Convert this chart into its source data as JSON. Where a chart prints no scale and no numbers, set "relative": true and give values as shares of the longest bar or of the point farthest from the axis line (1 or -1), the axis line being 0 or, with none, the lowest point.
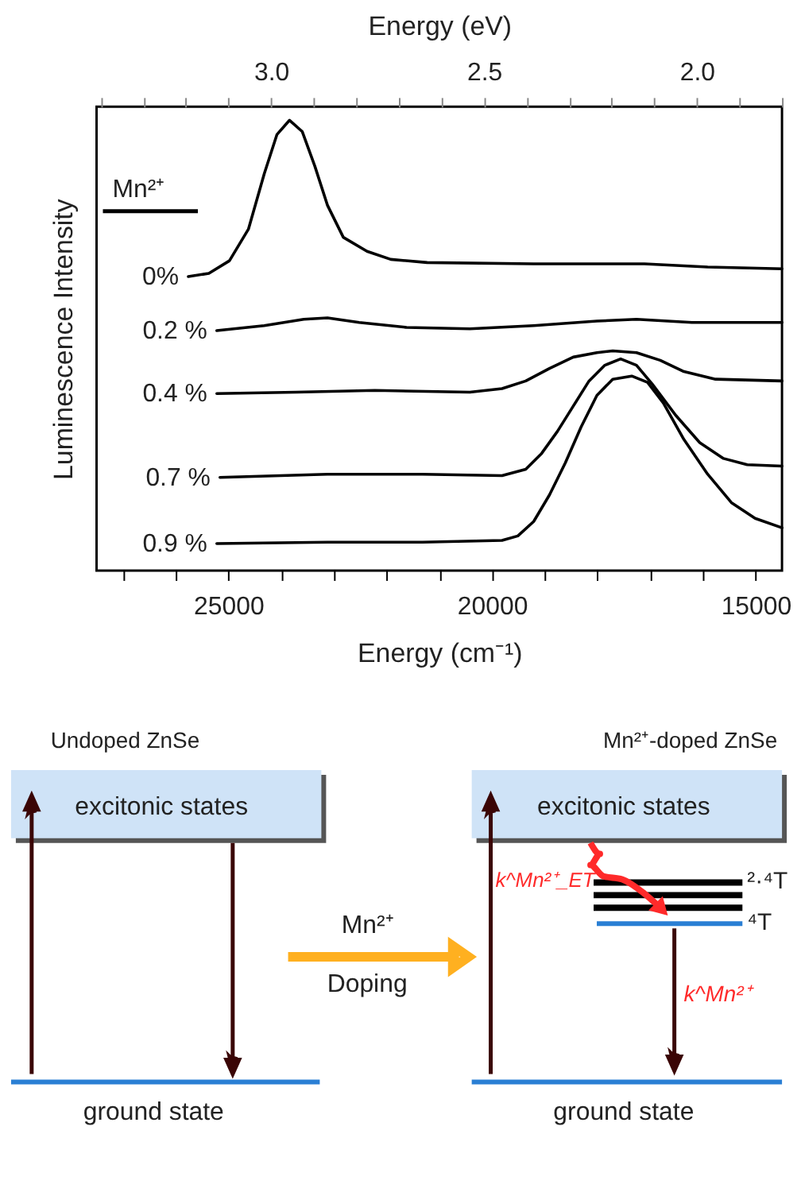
{
  "chart_data": [
    {
      "type": "line",
      "relative": true,
      "xlabel": "Energy (cm⁻¹)",
      "ylabel": "Luminescence Intensity",
      "x2label": "Energy (eV)",
      "legend_title": "Mn²⁺",
      "xlim": [
        27500,
        14500
      ],
      "xticks": [
        {
          "value": 27000,
          "label": null
        },
        {
          "value": 26000,
          "label": null
        },
        25000,
        {
          "value": 24000,
          "label": null
        },
        {
          "value": 23000,
          "label": null
        },
        {
          "value": 22000,
          "label": null
        },
        {
          "value": 21000,
          "label": null
        },
        20000,
        {
          "value": 19000,
          "label": null
        },
        {
          "value": 18000,
          "label": null
        },
        {
          "value": 17000,
          "label": null
        },
        {
          "value": 16000,
          "label": null
        },
        15000
      ],
      "x2lim": [
        3.41,
        1.8
      ],
      "x2ticks": [
        {
          "value": 3.4,
          "label": null
        },
        {
          "value": 3.3,
          "label": null
        },
        {
          "value": 3.2,
          "label": null
        },
        {
          "value": 3.1,
          "label": null
        },
        {
          "value": 3.0,
          "label": "3.0"
        },
        {
          "value": 2.9,
          "label": null
        },
        {
          "value": 2.8,
          "label": null
        },
        {
          "value": 2.7,
          "label": null
        },
        {
          "value": 2.6,
          "label": null
        },
        {
          "value": 2.5,
          "label": "2.5"
        },
        {
          "value": 2.4,
          "label": null
        },
        {
          "value": 2.3,
          "label": null
        },
        {
          "value": 2.2,
          "label": null
        },
        {
          "value": 2.1,
          "label": null
        },
        {
          "value": 2.0,
          "label": "2.0"
        },
        {
          "value": 1.9,
          "label": null
        },
        {
          "value": 1.8,
          "label": null
        }
      ],
      "series": [
        {
          "name": "0%",
          "color": "#000000",
          "x": [
            25760,
            25370,
            24980,
            24620,
            24320,
            24080,
            23840,
            23600,
            23360,
            23120,
            22820,
            22370,
            21920,
            21230,
            19210,
            17110,
            15910,
            14500
          ],
          "values": [
            0.653,
            0.66,
            0.688,
            0.758,
            0.881,
            0.968,
            1.0,
            0.975,
            0.898,
            0.811,
            0.74,
            0.709,
            0.691,
            0.684,
            0.681,
            0.681,
            0.674,
            0.67
          ]
        },
        {
          "name": "0.2 %",
          "color": "#000000",
          "x": [
            25220,
            24320,
            23570,
            23120,
            22520,
            21620,
            20420,
            19210,
            18010,
            17260,
            16210,
            14500
          ],
          "values": [
            0.533,
            0.544,
            0.558,
            0.561,
            0.551,
            0.54,
            0.537,
            0.544,
            0.554,
            0.558,
            0.551,
            0.551
          ]
        },
        {
          "name": "0.4 %",
          "color": "#000000",
          "x": [
            25220,
            23720,
            22220,
            20420,
            19810,
            19360,
            18910,
            18460,
            18010,
            17710,
            17260,
            16810,
            16360,
            15760,
            14500
          ],
          "values": [
            0.393,
            0.396,
            0.4,
            0.396,
            0.404,
            0.421,
            0.449,
            0.474,
            0.484,
            0.488,
            0.484,
            0.467,
            0.442,
            0.425,
            0.421
          ]
        },
        {
          "name": "0.7 %",
          "color": "#000000",
          "x": [
            25160,
            23120,
            21320,
            19810,
            19360,
            19060,
            18760,
            18460,
            18160,
            17860,
            17560,
            17260,
            16960,
            16510,
            16060,
            15610,
            15160,
            14500
          ],
          "values": [
            0.207,
            0.214,
            0.214,
            0.211,
            0.225,
            0.26,
            0.309,
            0.365,
            0.421,
            0.456,
            0.47,
            0.456,
            0.414,
            0.344,
            0.284,
            0.249,
            0.235,
            0.232
          ]
        },
        {
          "name": "0.9 %",
          "color": "#000000",
          "x": [
            25220,
            23120,
            21320,
            19810,
            19510,
            19210,
            18910,
            18610,
            18310,
            18010,
            17710,
            17350,
            17050,
            16750,
            16360,
            15910,
            15460,
            15010,
            14500
          ],
          "values": [
            0.06,
            0.063,
            0.063,
            0.067,
            0.077,
            0.109,
            0.168,
            0.239,
            0.319,
            0.389,
            0.425,
            0.432,
            0.418,
            0.372,
            0.291,
            0.214,
            0.151,
            0.116,
            0.095
          ]
        }
      ]
    },
    {
      "type": "other",
      "annotations": [
        "Undoped ZnSe",
        "Mn²⁺-doped ZnSe",
        "excitonic states",
        "excitonic states",
        "ground state",
        "ground state",
        "Mn²⁺",
        "Doping",
        "k^Mn²⁺_ET",
        "²·⁴T",
        "⁴T",
        "k^Mn²⁺"
      ]
    }
  ]
}
